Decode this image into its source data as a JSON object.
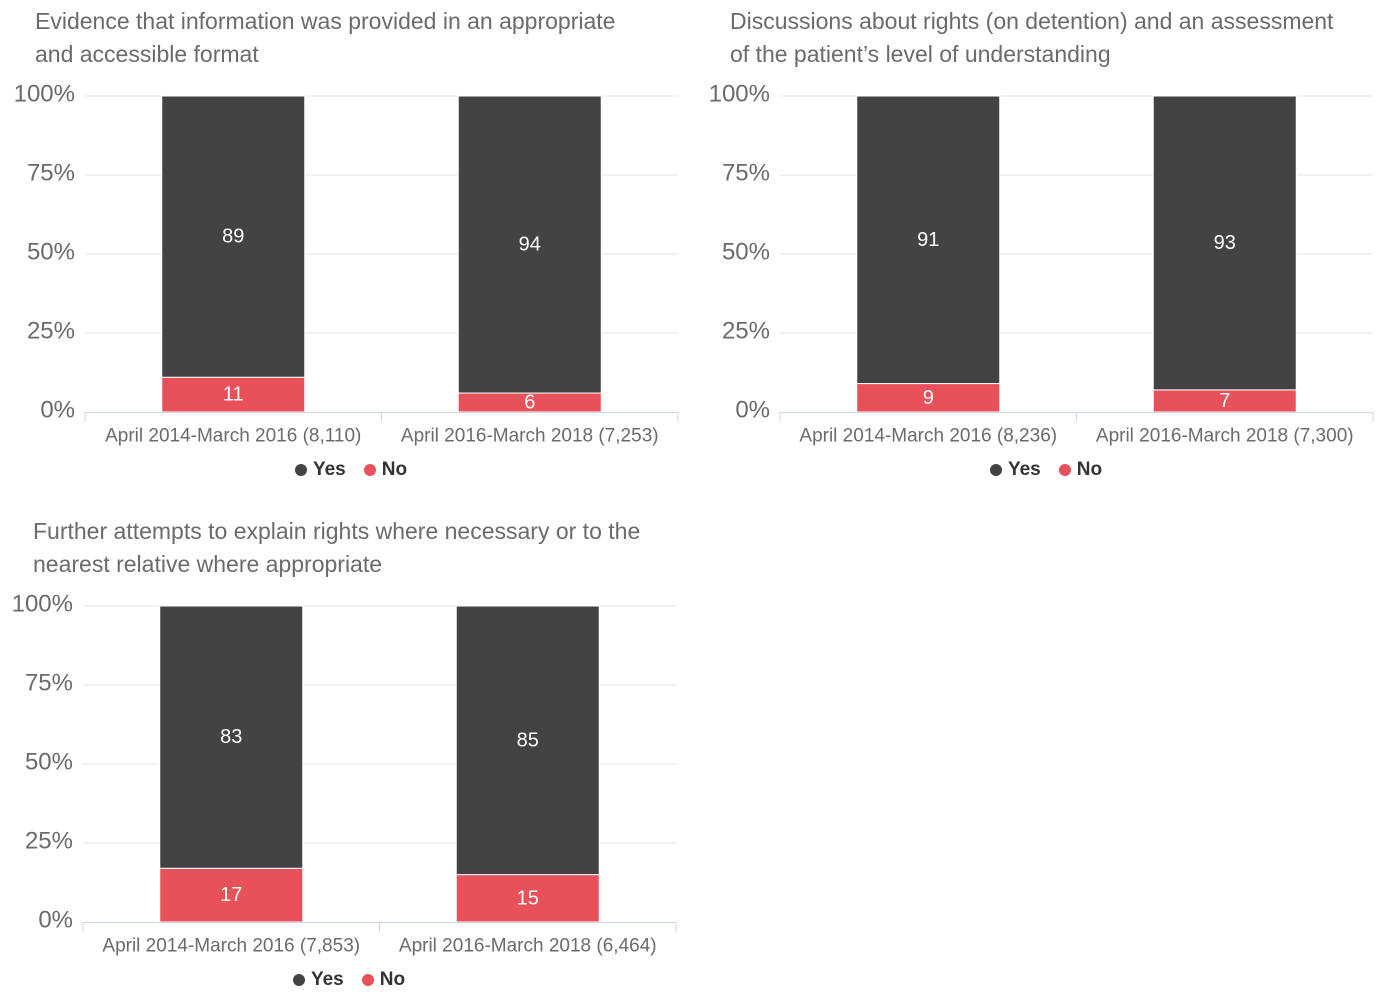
{
  "colors": {
    "title_text": "#6b6b6b",
    "axis_text": "#6b6b6b",
    "legend_text": "#333333",
    "data_label": "#ffffff",
    "gridline": "#e6e6e6",
    "axis_line": "#ccd6eb"
  },
  "chart_data": [
    {
      "type": "bar",
      "stacked": true,
      "title": "Evidence that information was provided in an appropriate and accessible format",
      "categories": [
        "April 2014-March 2016 (8,110)",
        "April 2016-March 2018 (7,253)"
      ],
      "series": [
        {
          "name": "Yes",
          "color": "#434346",
          "values": [
            89,
            94
          ]
        },
        {
          "name": "No",
          "color": "#e8505a",
          "values": [
            11,
            6
          ]
        }
      ],
      "ylim": [
        0,
        100
      ],
      "y_ticks": [
        0,
        25,
        50,
        75,
        100
      ],
      "y_tick_labels": [
        "0%",
        "25%",
        "50%",
        "75%",
        "100%"
      ],
      "data_labels": true,
      "grid": true,
      "legend": "bottom-center"
    },
    {
      "type": "bar",
      "stacked": true,
      "title": "Discussions about rights (on detention) and an assessment of the patient’s level of understanding",
      "categories": [
        "April 2014-March 2016 (8,236)",
        "April 2016-March 2018 (7,300)"
      ],
      "series": [
        {
          "name": "Yes",
          "color": "#434346",
          "values": [
            91,
            93
          ]
        },
        {
          "name": "No",
          "color": "#e8505a",
          "values": [
            9,
            7
          ]
        }
      ],
      "ylim": [
        0,
        100
      ],
      "y_ticks": [
        0,
        25,
        50,
        75,
        100
      ],
      "y_tick_labels": [
        "0%",
        "25%",
        "50%",
        "75%",
        "100%"
      ],
      "data_labels": true,
      "grid": true,
      "legend": "bottom-center"
    },
    {
      "type": "bar",
      "stacked": true,
      "title": "Further attempts to explain rights where necessary or to the nearest relative where appropriate",
      "categories": [
        "April 2014-March 2016 (7,853)",
        "April 2016-March 2018 (6,464)"
      ],
      "series": [
        {
          "name": "Yes",
          "color": "#434346",
          "values": [
            83,
            85
          ]
        },
        {
          "name": "No",
          "color": "#e8505a",
          "values": [
            17,
            15
          ]
        }
      ],
      "ylim": [
        0,
        100
      ],
      "y_ticks": [
        0,
        25,
        50,
        75,
        100
      ],
      "y_tick_labels": [
        "0%",
        "25%",
        "50%",
        "75%",
        "100%"
      ],
      "data_labels": true,
      "grid": true,
      "legend": "bottom-center"
    }
  ]
}
